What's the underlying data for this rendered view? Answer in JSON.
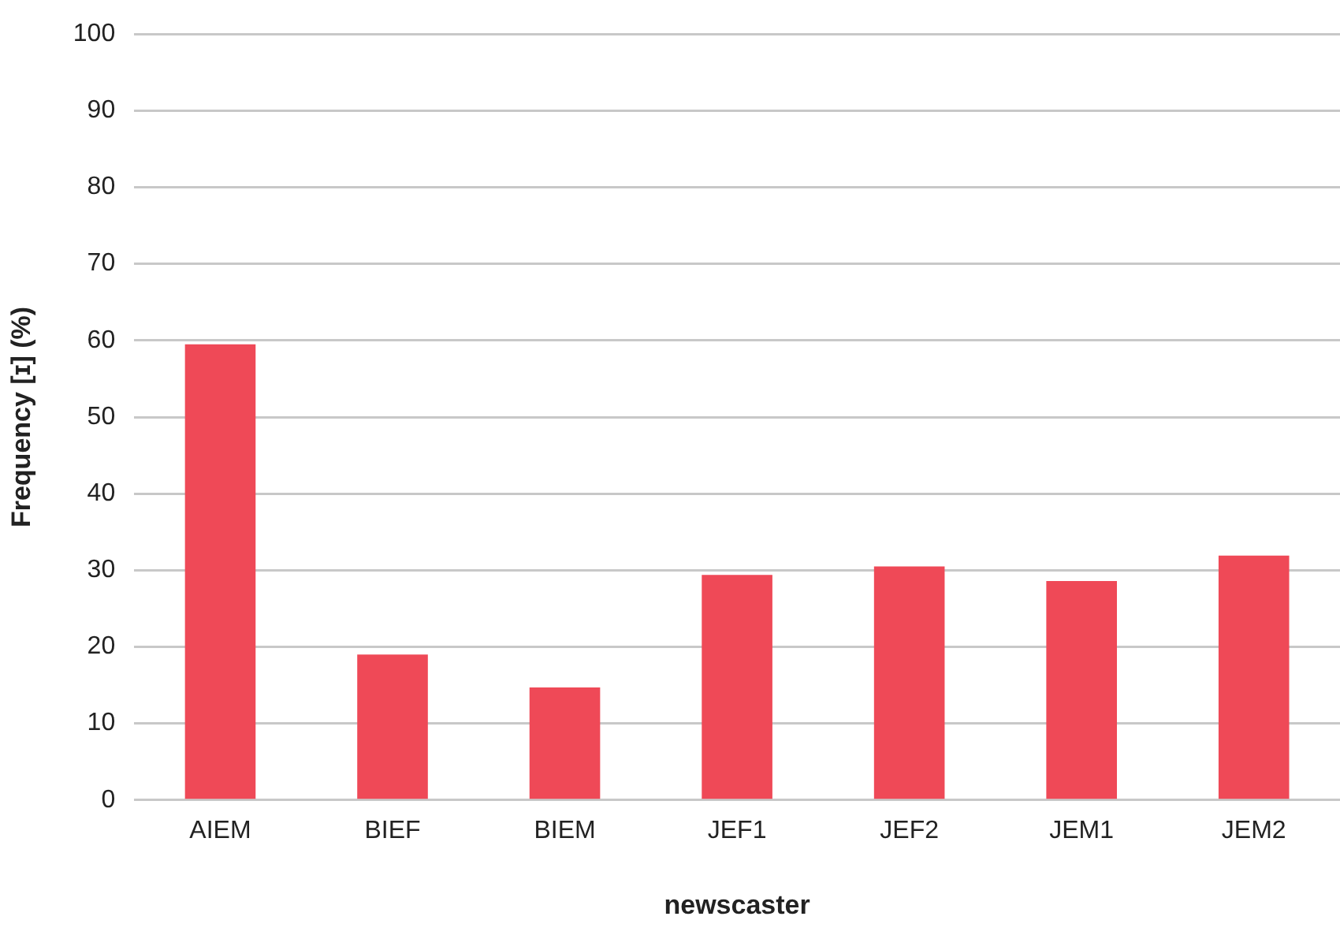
{
  "chart_data": {
    "type": "bar",
    "xlabel": "newscaster",
    "ylabel": "Frequency [ɪ] (%)",
    "categories": [
      "AIEM",
      "BIEF",
      "BIEM",
      "JEF1",
      "JEF2",
      "JEM1",
      "JEM2"
    ],
    "values": [
      59.5,
      19.0,
      14.7,
      29.4,
      30.5,
      28.6,
      31.9
    ],
    "color": "#ef4957",
    "ylim": [
      0,
      100
    ],
    "yticks": [
      0,
      10,
      20,
      30,
      40,
      50,
      60,
      70,
      80,
      90,
      100
    ],
    "grid": "y",
    "legend": false
  }
}
